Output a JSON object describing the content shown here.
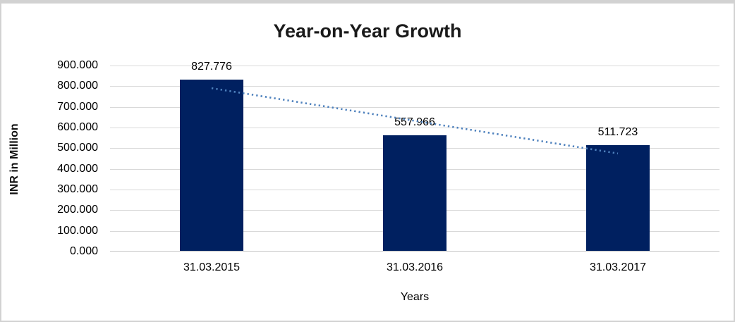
{
  "chart_data": {
    "type": "bar",
    "title": "Year-on-Year Growth",
    "xlabel": "Years",
    "ylabel": "INR in Million",
    "categories": [
      "31.03.2015",
      "31.03.2016",
      "31.03.2017"
    ],
    "values": [
      827.776,
      557.966,
      511.723
    ],
    "data_labels": [
      "827.776",
      "557.966",
      "511.723"
    ],
    "ylim": [
      0,
      900
    ],
    "ytick_step": 100,
    "ytick_labels": [
      "0.000",
      "100.000",
      "200.000",
      "300.000",
      "400.000",
      "500.000",
      "600.000",
      "700.000",
      "800.000",
      "900.000"
    ],
    "grid": true,
    "legend": "none",
    "trendline": {
      "type": "linear",
      "style": "dotted"
    },
    "colors": {
      "bar": "#002060",
      "trendline": "#4e81bd",
      "gridline": "#d9d9d9",
      "axis_line": "#c6c6c6",
      "title": "#1a1a1a",
      "border": "#d2d2d2"
    }
  }
}
